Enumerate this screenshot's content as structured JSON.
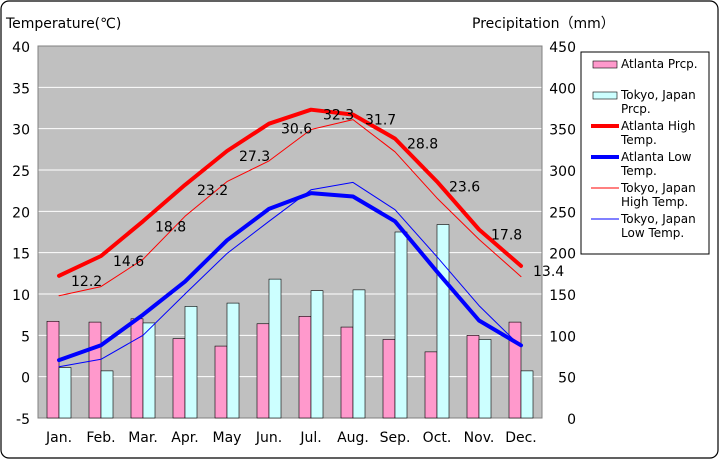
{
  "chart_data": {
    "type": "bar+line",
    "y_left_label": "Temperature(℃)",
    "y_right_label": "Precipitation（mm）",
    "y_left_ticks": [
      "40",
      "35",
      "30",
      "25",
      "20",
      "15",
      "10",
      "5",
      "0",
      "-5"
    ],
    "y_right_ticks": [
      "450",
      "400",
      "350",
      "300",
      "250",
      "200",
      "150",
      "100",
      "50",
      "0"
    ],
    "y_left_range": [
      -5,
      40
    ],
    "y_right_range": [
      0,
      450
    ],
    "grid": true,
    "legend_position": "right",
    "categories": [
      "Jan.",
      "Feb.",
      "Mar.",
      "Apr.",
      "May",
      "Jun.",
      "Jul.",
      "Aug.",
      "Sep.",
      "Oct.",
      "Nov.",
      "Dec."
    ],
    "bar_series": [
      {
        "name": "Atlanta Prcp.",
        "color": "#ff99cc",
        "values": [
          117,
          116,
          120,
          96,
          87,
          114,
          123,
          110,
          95,
          80,
          100,
          116
        ]
      },
      {
        "name": "Tokyo, Japan Prcp.",
        "color": "#ccffff",
        "values": [
          61,
          57,
          115,
          135,
          139,
          168,
          154,
          155,
          225,
          234,
          95,
          57
        ]
      }
    ],
    "line_series": [
      {
        "name": "Atlanta High Temp.",
        "color": "#ff0000",
        "width": "thick",
        "values": [
          12.2,
          14.6,
          18.8,
          23.2,
          27.3,
          30.6,
          32.3,
          31.7,
          28.8,
          23.6,
          17.8,
          13.4
        ],
        "labels": [
          "12.2",
          "14.6",
          "18.8",
          "23.2",
          "27.3",
          "30.6",
          "32.3",
          "31.7",
          "28.8",
          "23.6",
          "17.8",
          "13.4"
        ]
      },
      {
        "name": "Atlanta Low Temp.",
        "color": "#0000ff",
        "width": "thick",
        "values": [
          2.0,
          3.8,
          7.5,
          11.5,
          16.5,
          20.3,
          22.2,
          21.8,
          18.8,
          12.7,
          6.8,
          3.8
        ]
      },
      {
        "name": "Tokyo, Japan High Temp.",
        "color": "#ff0000",
        "width": "thin",
        "values": [
          9.8,
          10.9,
          14.2,
          19.4,
          23.6,
          26.1,
          29.9,
          31.1,
          27.2,
          21.6,
          16.6,
          12.1
        ]
      },
      {
        "name": "Tokyo, Japan Low Temp.",
        "color": "#0000ff",
        "width": "thin",
        "values": [
          1.2,
          2.1,
          5.0,
          10.0,
          14.9,
          18.8,
          22.6,
          23.5,
          20.2,
          14.5,
          8.6,
          3.6
        ]
      }
    ],
    "legend": [
      {
        "kind": "bar",
        "color": "#ff99cc",
        "lines": [
          "Atlanta Prcp."
        ]
      },
      {
        "kind": "bar",
        "color": "#ccffff",
        "lines": [
          "Tokyo, Japan",
          "Prcp."
        ]
      },
      {
        "kind": "line",
        "color": "#ff0000",
        "width": "thick",
        "lines": [
          "Atlanta High",
          "Temp."
        ]
      },
      {
        "kind": "line",
        "color": "#0000ff",
        "width": "thick",
        "lines": [
          "Atlanta Low",
          "Temp."
        ]
      },
      {
        "kind": "line",
        "color": "#ff0000",
        "width": "thin",
        "lines": [
          "Tokyo, Japan",
          "High Temp."
        ]
      },
      {
        "kind": "line",
        "color": "#0000ff",
        "width": "thin",
        "lines": [
          "Tokyo, Japan",
          "Low Temp."
        ]
      }
    ],
    "colors": {
      "plot_background": "#c0c0c0",
      "grid": "#ffffff",
      "bar_stroke": "#000000"
    }
  }
}
